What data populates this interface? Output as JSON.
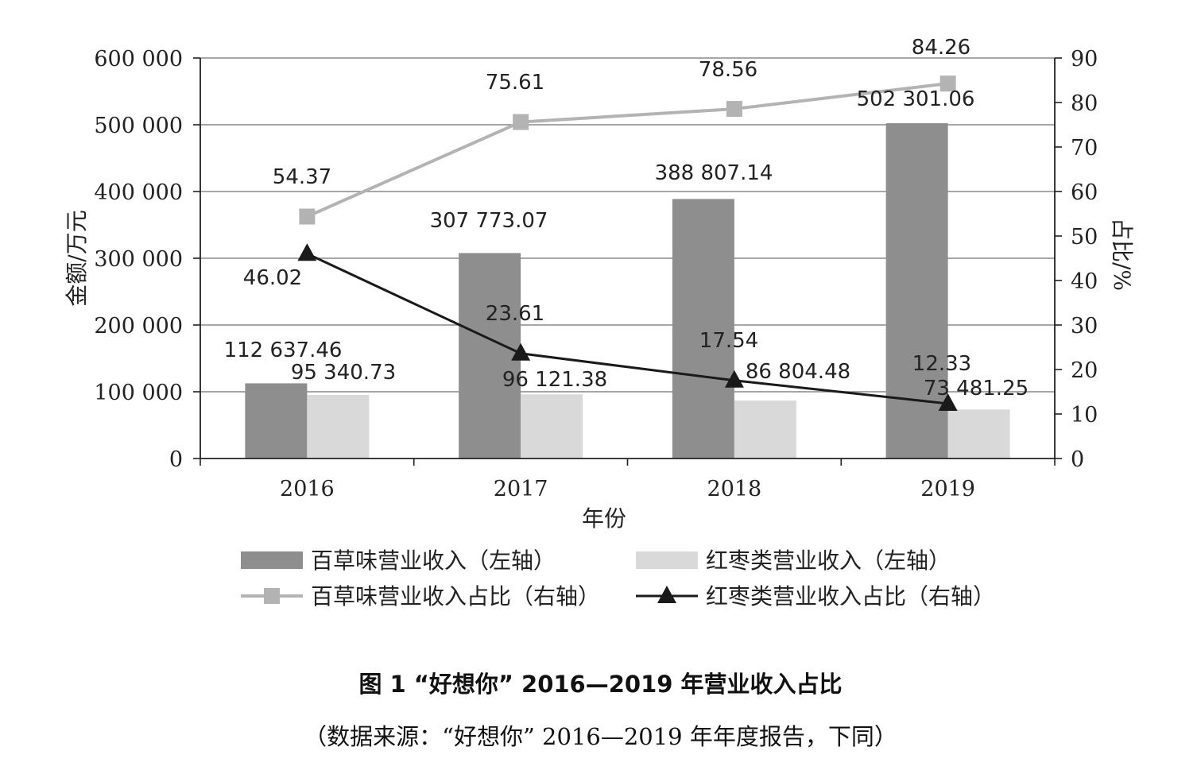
{
  "chart_data": {
    "type": "bar",
    "categories": [
      "2016",
      "2017",
      "2018",
      "2019"
    ],
    "xlabel": "年份",
    "ylabel_left": "金额/万元",
    "ylabel_right": "占比/%",
    "ylim_left": [
      0,
      600000
    ],
    "ylim_right": [
      0,
      90
    ],
    "yticks_left": [
      "0",
      "100 000",
      "200 000",
      "300 000",
      "400 000",
      "500 000",
      "600 000"
    ],
    "yticks_right": [
      "0",
      "10",
      "20",
      "30",
      "40",
      "50",
      "60",
      "70",
      "80",
      "90"
    ],
    "grid": true,
    "legend_position": "bottom",
    "series": [
      {
        "name": "百草味营业收入（左轴）",
        "type": "bar",
        "axis": "left",
        "color": "#8e8e8e",
        "values": [
          112637.46,
          307773.07,
          388807.14,
          502301.06
        ],
        "labels": [
          "112 637.46",
          "307 773.07",
          "388 807.14",
          "502 301.06"
        ]
      },
      {
        "name": "红枣类营业收入（左轴）",
        "type": "bar",
        "axis": "left",
        "color": "#d9d9d9",
        "values": [
          95340.73,
          96121.38,
          86804.48,
          73481.25
        ],
        "labels": [
          "95 340.73",
          "96 121.38",
          "86 804.48",
          "73 481.25"
        ]
      },
      {
        "name": "百草味营业收入占比（右轴）",
        "type": "line",
        "axis": "right",
        "color": "#b3b3b3",
        "marker": "square",
        "values": [
          54.37,
          75.61,
          78.56,
          84.26
        ],
        "labels": [
          "54.37",
          "75.61",
          "78.56",
          "84.26"
        ]
      },
      {
        "name": "红枣类营业收入占比（右轴）",
        "type": "line",
        "axis": "right",
        "color": "#1a1a1a",
        "marker": "triangle",
        "values": [
          46.02,
          23.61,
          17.54,
          12.33
        ],
        "labels": [
          "46.02",
          "23.61",
          "17.54",
          "12.33"
        ]
      }
    ]
  },
  "caption": {
    "title": "图 1 “好想你” 2016—2019 年营业收入占比",
    "source": "（数据来源：“好想你” 2016—2019 年年度报告，下同）"
  }
}
